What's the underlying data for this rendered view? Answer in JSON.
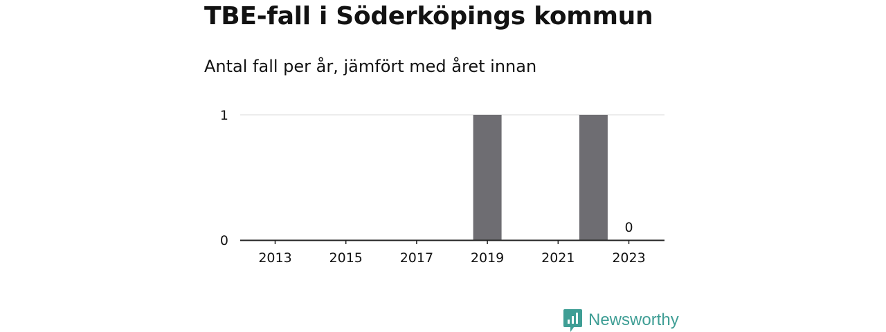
{
  "header": {
    "title": "TBE-fall i Söderköpings kommun",
    "subtitle": "Antal fall per år, jämfört med året innan"
  },
  "brand": {
    "name": "Newsworthy",
    "logo_icon": "newsworthy-logo-icon",
    "color": "#3f9e95"
  },
  "chart_data": {
    "type": "bar",
    "categories": [
      "2013",
      "2014",
      "2015",
      "2016",
      "2017",
      "2018",
      "2019",
      "2020",
      "2021",
      "2022",
      "2023"
    ],
    "values": [
      0,
      0,
      0,
      0,
      0,
      0,
      1,
      0,
      0,
      1,
      0
    ],
    "x_tick_labels": [
      "2013",
      "2015",
      "2017",
      "2019",
      "2021",
      "2023"
    ],
    "y_ticks": [
      0,
      1
    ],
    "ylim": [
      0,
      1
    ],
    "grid": true,
    "bar_color": "#6e6d72",
    "data_labels": [
      {
        "category": "2023",
        "text": "0"
      }
    ]
  }
}
